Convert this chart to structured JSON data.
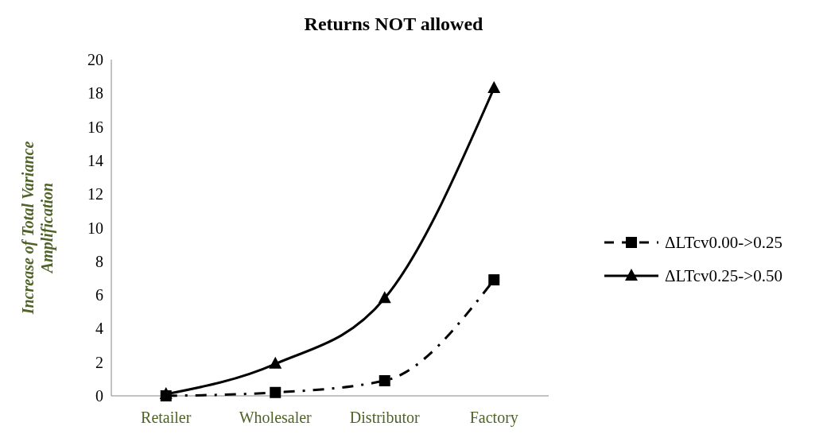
{
  "chart_data": {
    "type": "line",
    "title": "Returns NOT allowed",
    "ylabel": "Increase of Total Variance Amplification",
    "categories": [
      "Retailer",
      "Wholesaler",
      "Distributor",
      "Factory"
    ],
    "series": [
      {
        "name": "ΔLTcv0.00->0.25",
        "color": "#000000",
        "values": [
          0,
          0.2,
          0.9,
          6.9
        ],
        "marker": "square",
        "line_style": "dashed"
      },
      {
        "name": "ΔLTcv0.25->0.50",
        "color": "#000000",
        "values": [
          0.1,
          1.9,
          5.8,
          18.3
        ],
        "marker": "triangle",
        "line_style": "solid"
      }
    ],
    "ylim": [
      0,
      20
    ],
    "yticks": [
      0,
      2,
      4,
      6,
      8,
      10,
      12,
      14,
      16,
      18,
      20
    ],
    "grid": false,
    "legend": "right"
  }
}
